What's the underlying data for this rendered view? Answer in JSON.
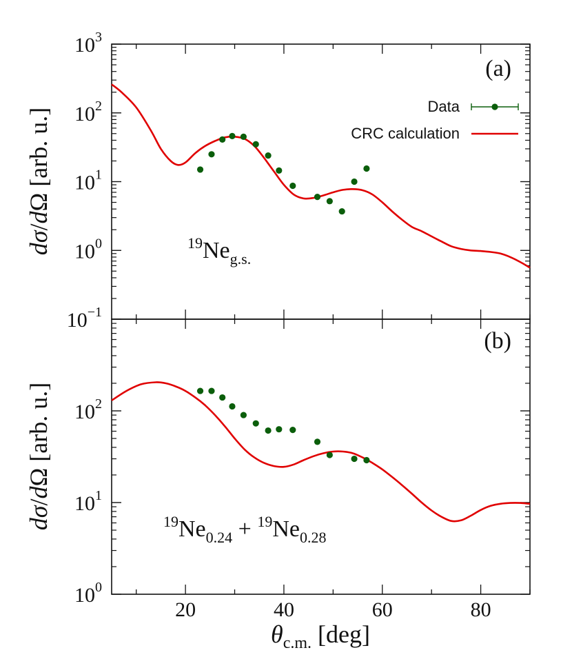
{
  "colors": {
    "curve": "#e00000",
    "points": "#0b5e0b",
    "axis": "#111111"
  },
  "xaxis": {
    "label_symbol": "θ",
    "label_sub": "c.m.",
    "label_unit": " [deg]",
    "range": [
      5,
      90
    ],
    "ticks": [
      20,
      40,
      60,
      80
    ]
  },
  "legend": {
    "data_label": "Data",
    "curve_label": "CRC calculation"
  },
  "chart_data": [
    {
      "type": "scatter+line",
      "panel_label": "(a)",
      "ylabel_parts": {
        "d1": "d",
        "sigma": "σ",
        "slash": "/",
        "d2": "d",
        "omega": "Ω",
        "unit": " [arb. u.]"
      },
      "yscale": "log",
      "ylim": [
        0.1,
        1000
      ],
      "yticks": [
        {
          "base": "10",
          "exp": "3",
          "value": 1000
        },
        {
          "base": "10",
          "exp": "2",
          "value": 100
        },
        {
          "base": "10",
          "exp": "1",
          "value": 10
        },
        {
          "base": "10",
          "exp": "0",
          "value": 1
        },
        {
          "base": "10",
          "exp": "−1",
          "value": 0.1
        }
      ],
      "annotation": {
        "sup": "19",
        "main": "Ne",
        "sub": "g.s."
      },
      "data": {
        "x": [
          23.0,
          25.3,
          27.5,
          29.5,
          31.8,
          34.3,
          36.8,
          39.0,
          41.8,
          46.8,
          49.3,
          51.8,
          54.3,
          56.8
        ],
        "y": [
          15.0,
          25.0,
          41.0,
          46.0,
          45.0,
          35.0,
          24.0,
          14.5,
          8.7,
          6.0,
          5.2,
          3.7,
          10.0,
          15.5
        ]
      },
      "curve": {
        "x": [
          5,
          7,
          10,
          13,
          15,
          17,
          18.5,
          20,
          22,
          24,
          26,
          28,
          30,
          32,
          34,
          36,
          38,
          40,
          42,
          44,
          46,
          48,
          50,
          52,
          54,
          56,
          58,
          60,
          62,
          64,
          66,
          68,
          70,
          72,
          74,
          76,
          78,
          80,
          82,
          84,
          86,
          88,
          90
        ],
        "y": [
          260,
          200,
          120,
          55,
          30,
          20,
          17.5,
          19,
          26,
          33,
          39,
          44,
          45,
          42,
          33,
          22,
          14,
          9,
          6.5,
          5.7,
          5.8,
          6.3,
          7.0,
          7.6,
          7.8,
          7.5,
          6.5,
          5.0,
          3.7,
          2.8,
          2.2,
          1.9,
          1.6,
          1.35,
          1.15,
          1.05,
          1.0,
          0.98,
          0.95,
          0.9,
          0.8,
          0.68,
          0.56
        ]
      }
    },
    {
      "type": "scatter+line",
      "panel_label": "(b)",
      "ylabel_parts": {
        "d1": "d",
        "sigma": "σ",
        "slash": "/",
        "d2": "d",
        "omega": "Ω",
        "unit": " [arb. u.]"
      },
      "yscale": "log",
      "ylim": [
        1,
        1000
      ],
      "yticks": [
        {
          "base": "10",
          "exp": "2",
          "value": 100
        },
        {
          "base": "10",
          "exp": "1",
          "value": 10
        },
        {
          "base": "10",
          "exp": "0",
          "value": 1
        }
      ],
      "annotation": {
        "sup1": "19",
        "main1": "Ne",
        "sub1": "0.24",
        "plus": " + ",
        "sup2": "19",
        "main2": "Ne",
        "sub2": "0.28"
      },
      "data": {
        "x": [
          23.0,
          25.3,
          27.5,
          29.5,
          31.8,
          34.3,
          36.8,
          39.0,
          41.8,
          46.8,
          49.3,
          54.3,
          56.8
        ],
        "y": [
          165,
          165,
          140,
          112,
          90,
          73,
          61,
          63,
          62,
          46,
          33,
          30,
          29
        ]
      },
      "curve": {
        "x": [
          5,
          8,
          11,
          14,
          16,
          18,
          20,
          22,
          24,
          26,
          28,
          30,
          32,
          34,
          36,
          38,
          40,
          42,
          44,
          46,
          48,
          50,
          52,
          54,
          56,
          58,
          60,
          62,
          64,
          66,
          68,
          70,
          72,
          74,
          76,
          78,
          80,
          82,
          84,
          86,
          88,
          90
        ],
        "y": [
          130,
          165,
          195,
          205,
          200,
          185,
          165,
          140,
          115,
          90,
          68,
          50,
          38,
          31,
          27,
          25,
          24.5,
          26,
          29,
          32,
          34.5,
          36,
          36,
          34.5,
          31,
          27,
          23,
          19,
          15.5,
          12.5,
          10,
          8.2,
          7,
          6.3,
          6.4,
          7.2,
          8.3,
          9.2,
          9.7,
          9.9,
          9.9,
          9.7
        ]
      }
    }
  ]
}
